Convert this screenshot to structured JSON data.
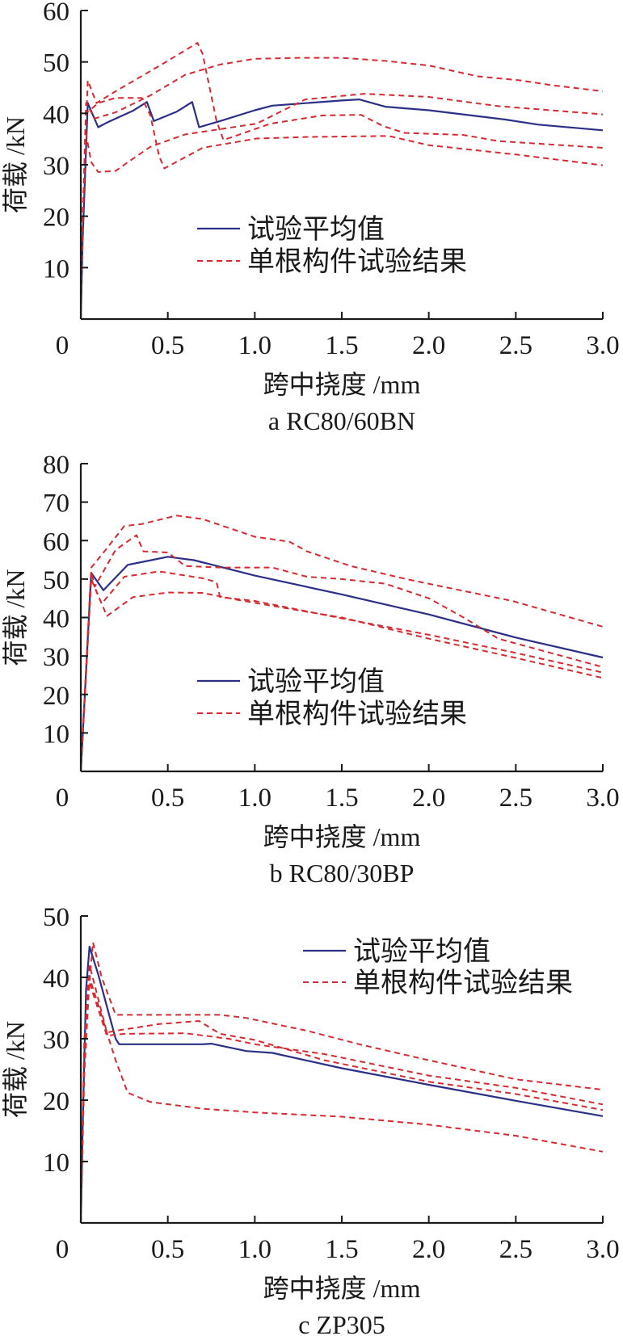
{
  "colors": {
    "mean": "#2b2f86",
    "single": "#d42a30",
    "axis": "#1a1a1a"
  },
  "chart_data": [
    {
      "type": "line",
      "caption": "a RC80/60BN",
      "xlabel": "跨中挠度 /mm",
      "ylabel": "荷载 /kN",
      "xlim": [
        0,
        3.0
      ],
      "ylim": [
        0,
        60
      ],
      "xticks": [
        "0",
        "0.5",
        "1.0",
        "1.5",
        "2.0",
        "2.5",
        "3.0"
      ],
      "yticks": [
        "10",
        "20",
        "30",
        "40",
        "50",
        "60"
      ],
      "legend": {
        "position": "center-left",
        "mean_label": "试验平均值",
        "single_label": "单根构件试验结果"
      },
      "series": [
        {
          "name": "试验平均值",
          "style": "solid",
          "x": [
            0,
            0.01,
            0.04,
            0.1,
            0.15,
            0.3,
            0.38,
            0.42,
            0.55,
            0.64,
            0.68,
            0.8,
            1.0,
            1.1,
            1.5,
            1.6,
            1.75,
            2.0,
            2.44,
            2.63,
            3.0
          ],
          "y": [
            0,
            15,
            42,
            37.3,
            38.2,
            40.5,
            42.2,
            38.5,
            40.3,
            42.2,
            37.3,
            38.5,
            40.6,
            41.5,
            42.5,
            42.7,
            41.3,
            40.6,
            38.8,
            37.8,
            36.7
          ]
        },
        {
          "name": "单根构件试验结果 1",
          "style": "dashed",
          "x": [
            0,
            0.01,
            0.04,
            0.09,
            0.2,
            0.48,
            0.67,
            0.7,
            0.78,
            0.82,
            1.09,
            1.39,
            1.61,
            1.74,
            1.86,
            2.2,
            2.4,
            3.0
          ],
          "y": [
            0,
            20,
            46.4,
            42,
            44.3,
            49.8,
            53.7,
            51.6,
            38.5,
            34.8,
            38,
            39.6,
            39.7,
            37.5,
            36.2,
            35.8,
            34.6,
            33.3
          ]
        },
        {
          "name": "单根构件试验结果 2",
          "style": "dashed",
          "x": [
            0,
            0.01,
            0.03,
            0.08,
            0.2,
            0.4,
            0.6,
            0.8,
            1.0,
            1.25,
            1.5,
            1.75,
            2.0,
            2.28,
            2.53,
            2.7,
            3.0
          ],
          "y": [
            0,
            18,
            42,
            39,
            40.2,
            43.5,
            47.5,
            49.5,
            50.6,
            50.8,
            50.8,
            50.2,
            49.3,
            47.2,
            46.4,
            45.5,
            44.3
          ]
        },
        {
          "name": "单根构件试验结果 3",
          "style": "dashed",
          "x": [
            0,
            0.01,
            0.03,
            0.1,
            0.2,
            0.35,
            0.4,
            0.45,
            0.48,
            0.7,
            1.01,
            1.29,
            1.77,
            2.0,
            2.5,
            3.0
          ],
          "y": [
            0,
            16,
            40,
            42,
            43,
            43,
            39.6,
            31.7,
            29.3,
            33.3,
            35.1,
            35.4,
            35.6,
            33.8,
            32,
            29.9
          ]
        },
        {
          "name": "单根构件试验结果 4",
          "style": "dashed",
          "x": [
            0,
            0.01,
            0.03,
            0.06,
            0.1,
            0.2,
            0.3,
            0.4,
            0.6,
            1.01,
            1.29,
            1.63,
            2.0,
            2.4,
            3.0
          ],
          "y": [
            0,
            20,
            36,
            30.5,
            28.6,
            28.8,
            31.2,
            33.5,
            35.9,
            38,
            42.7,
            43.8,
            43.2,
            41.4,
            39.8
          ]
        }
      ]
    },
    {
      "type": "line",
      "caption": "b RC80/30BP",
      "xlabel": "跨中挠度 /mm",
      "ylabel": "荷载 /kN",
      "xlim": [
        0,
        3.0
      ],
      "ylim": [
        0,
        80
      ],
      "xticks": [
        "0",
        "0.5",
        "1.0",
        "1.5",
        "2.0",
        "2.5",
        "3.0"
      ],
      "yticks": [
        "10",
        "20",
        "30",
        "40",
        "50",
        "60",
        "70",
        "80"
      ],
      "legend": {
        "position": "center-left",
        "mean_label": "试验平均值",
        "single_label": "单根构件试验结果"
      },
      "series": [
        {
          "name": "试验平均值",
          "style": "solid",
          "x": [
            0,
            0.06,
            0.13,
            0.27,
            0.37,
            0.5,
            0.65,
            1.0,
            1.5,
            2.0,
            2.5,
            3.0
          ],
          "y": [
            0,
            51.6,
            47.1,
            53.7,
            54.6,
            55.8,
            54.9,
            50.9,
            46,
            40.8,
            34.8,
            29.6
          ]
        },
        {
          "name": "单根构件试验结果 1",
          "style": "dashed",
          "x": [
            0,
            0.06,
            0.15,
            0.25,
            0.35,
            0.55,
            0.7,
            1.0,
            1.2,
            1.3,
            1.55,
            1.88,
            2.48,
            3.0
          ],
          "y": [
            0,
            53,
            58,
            63.8,
            64.3,
            66.5,
            65.6,
            61,
            59.7,
            57.2,
            53.4,
            49.9,
            44.3,
            37.6
          ]
        },
        {
          "name": "单根构件试验结果 2",
          "style": "dashed",
          "x": [
            0,
            0.06,
            0.08,
            0.2,
            0.32,
            0.36,
            0.5,
            0.6,
            0.8,
            1.1,
            1.3,
            1.5,
            1.75,
            2.0,
            2.2,
            2.4,
            3.0
          ],
          "y": [
            0,
            52,
            48,
            57.6,
            61.4,
            57.2,
            56.9,
            53.4,
            53,
            53,
            50.6,
            50,
            48.8,
            45,
            40,
            34.5,
            27.1
          ]
        },
        {
          "name": "单根构件试验结果 3",
          "style": "dashed",
          "x": [
            0,
            0.06,
            0.12,
            0.25,
            0.45,
            0.7,
            0.78,
            0.8,
            1.0,
            1.5,
            2.0,
            2.5,
            3.0
          ],
          "y": [
            0,
            50,
            43.6,
            50.6,
            52,
            50.2,
            49.2,
            45.3,
            44.3,
            39.8,
            35.5,
            30.8,
            25.7
          ]
        },
        {
          "name": "单根构件试验结果 4",
          "style": "dashed",
          "x": [
            0,
            0.06,
            0.15,
            0.3,
            0.5,
            0.7,
            0.9,
            1.3,
            1.5,
            2.0,
            2.5,
            3.0
          ],
          "y": [
            0,
            50,
            40.4,
            45.3,
            46.5,
            46.4,
            44.6,
            41.5,
            40,
            34.5,
            29.5,
            24.3
          ]
        }
      ]
    },
    {
      "type": "line",
      "caption": "c ZP305",
      "xlabel": "跨中挠度 /mm",
      "ylabel": "荷载 /kN",
      "xlim": [
        0,
        3.0
      ],
      "ylim": [
        0,
        50
      ],
      "xticks": [
        "0",
        "0.5",
        "1.0",
        "1.5",
        "2.0",
        "2.5",
        "3.0"
      ],
      "yticks": [
        "10",
        "20",
        "30",
        "40",
        "50"
      ],
      "legend": {
        "position": "top-right",
        "mean_label": "试验平均值",
        "single_label": "单根构件试验结果"
      },
      "series": [
        {
          "name": "试验平均值",
          "style": "solid",
          "x": [
            0,
            0.01,
            0.03,
            0.05,
            0.1,
            0.2,
            0.22,
            0.7,
            0.75,
            0.95,
            1.1,
            1.5,
            2.0,
            2.5,
            3.0
          ],
          "y": [
            0,
            15,
            38,
            45,
            40.5,
            30,
            29.1,
            29.1,
            29.2,
            28,
            27.7,
            25.2,
            22.5,
            19.9,
            17.4
          ]
        },
        {
          "name": "单根构件试验结果 1",
          "style": "dashed",
          "x": [
            0,
            0.02,
            0.07,
            0.12,
            0.2,
            0.8,
            0.95,
            1.3,
            1.6,
            2.0,
            2.5,
            3.0
          ],
          "y": [
            0,
            30,
            45.7,
            40,
            33.9,
            33.9,
            33.4,
            31.3,
            29.1,
            26.5,
            23.4,
            21.7
          ]
        },
        {
          "name": "单根构件试验结果 2",
          "style": "dashed",
          "x": [
            0,
            0.02,
            0.05,
            0.15,
            0.2,
            0.45,
            0.68,
            0.8,
            1.0,
            1.4,
            2.0,
            2.5,
            3.0
          ],
          "y": [
            0,
            28,
            42,
            31,
            31.3,
            32.4,
            32.9,
            30.8,
            29.8,
            26.5,
            23,
            21,
            18.4
          ]
        },
        {
          "name": "单根构件试验结果 3",
          "style": "dashed",
          "x": [
            0,
            0.02,
            0.04,
            0.15,
            0.25,
            0.6,
            0.85,
            1.0,
            1.4,
            2.0,
            2.5,
            3.0
          ],
          "y": [
            0,
            26,
            40,
            30.5,
            30.8,
            30.9,
            30,
            29.1,
            27.5,
            24,
            22,
            19.3
          ]
        },
        {
          "name": "单根构件试验结果 4",
          "style": "dashed",
          "x": [
            0,
            0.02,
            0.05,
            0.2,
            0.27,
            0.4,
            0.7,
            1.0,
            1.5,
            2.0,
            2.5,
            3.0
          ],
          "y": [
            0,
            24,
            40,
            26.5,
            21.2,
            19.7,
            18.6,
            18,
            17.3,
            16,
            14.2,
            11.6
          ]
        }
      ]
    }
  ]
}
